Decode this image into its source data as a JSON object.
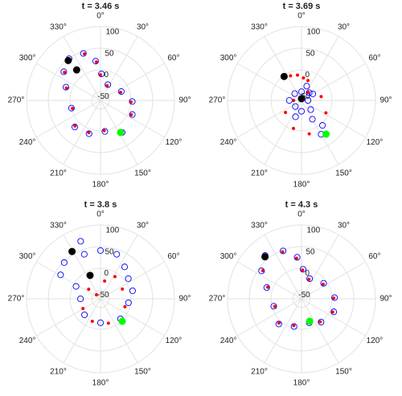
{
  "chart_data": [
    {
      "type": "polar",
      "title": "t = 3.46 s",
      "rlim": [
        -70,
        100
      ],
      "rticks": [
        -50,
        0,
        50,
        100
      ],
      "thetaticks": [
        {
          "value": 0,
          "label": "0°"
        },
        {
          "value": 30,
          "label": "30°"
        },
        {
          "value": 60,
          "label": "60°"
        },
        {
          "value": 90,
          "label": "90°"
        },
        {
          "value": 120,
          "label": "120°"
        },
        {
          "value": 150,
          "label": "150°"
        },
        {
          "value": 180,
          "label": "180°"
        },
        {
          "value": 210,
          "label": "210°"
        },
        {
          "value": 240,
          "label": "240°"
        },
        {
          "value": 270,
          "label": "270°"
        },
        {
          "value": 300,
          "label": "300°"
        },
        {
          "value": 330,
          "label": "330°"
        }
      ],
      "series": [
        {
          "marker": "ring",
          "color": "#0000ff",
          "theta": [
            323,
            340,
            353,
            2,
            25,
            67,
            92,
            114,
            146,
            172,
            199,
            224,
            255,
            291,
            308
          ],
          "r": [
            50,
            45,
            21,
            -9,
            -30,
            -18,
            3,
            10,
            19,
            2,
            11,
            15,
            -1,
            15,
            37
          ]
        },
        {
          "marker": "dot",
          "color": "#ff0000",
          "theta": [
            321,
            341,
            354,
            0,
            24,
            68,
            93,
            115,
            148,
            173,
            200,
            225,
            254,
            290,
            308
          ],
          "r": [
            48,
            43,
            19,
            -11,
            -33,
            -20,
            0,
            8,
            17,
            0,
            9,
            13,
            -3,
            13,
            35
          ]
        },
        {
          "marker": "disc",
          "color": "#000000",
          "theta": [
            321,
            322
          ],
          "r": [
            48,
            19
          ]
        },
        {
          "marker": "disc",
          "color": "#00ff00",
          "theta": [
            148
          ],
          "r": [
            17
          ]
        }
      ]
    },
    {
      "type": "polar",
      "title": "t = 3.69 s",
      "rlim": [
        -70,
        100
      ],
      "rticks": [
        -50,
        0,
        50,
        100
      ],
      "thetaticks": [
        {
          "value": 0,
          "label": "0°"
        },
        {
          "value": 30,
          "label": "30°"
        },
        {
          "value": 60,
          "label": "60°"
        },
        {
          "value": 90,
          "label": "90°"
        },
        {
          "value": 120,
          "label": "120°"
        },
        {
          "value": 150,
          "label": "150°"
        },
        {
          "value": 180,
          "label": "180°"
        },
        {
          "value": 210,
          "label": "210°"
        },
        {
          "value": 240,
          "label": "240°"
        },
        {
          "value": 270,
          "label": "270°"
        },
        {
          "value": 300,
          "label": "300°"
        },
        {
          "value": 330,
          "label": "330°"
        }
      ],
      "series": [
        {
          "marker": "ring",
          "color": "#0000ff",
          "theta": [
            0,
            45,
            90,
            135,
            180,
            225,
            270,
            315,
            20,
            60,
            150,
            200,
            140,
            150
          ],
          "r": [
            -50,
            -45,
            -55,
            -40,
            -45,
            -50,
            -42,
            -48,
            -35,
            -40,
            -20,
            -30,
            5,
            20
          ]
        },
        {
          "marker": "dot",
          "color": "#ff0000",
          "theta": [
            324,
            336,
            351,
            5,
            18,
            39,
            79,
            117,
            144,
            167,
            196,
            233,
            270
          ],
          "r": [
            -2,
            -8,
            -11,
            -18,
            -22,
            -46,
            -24,
            -7,
            26,
            9,
            -3,
            -24,
            -52
          ]
        },
        {
          "marker": "disc",
          "color": "#000000",
          "theta": [
            324,
            0
          ],
          "r": [
            -2,
            -66
          ]
        },
        {
          "marker": "disc",
          "color": "#00ff00",
          "theta": [
            144
          ],
          "r": [
            26
          ]
        }
      ]
    },
    {
      "type": "polar",
      "title": "t = 3.8 s",
      "rlim": [
        -70,
        100
      ],
      "rticks": [
        -50,
        0,
        50,
        100
      ],
      "thetaticks": [
        {
          "value": 0,
          "label": "0°"
        },
        {
          "value": 30,
          "label": "30°"
        },
        {
          "value": 60,
          "label": "60°"
        },
        {
          "value": 90,
          "label": "90°"
        },
        {
          "value": 120,
          "label": "120°"
        },
        {
          "value": 150,
          "label": "150°"
        },
        {
          "value": 180,
          "label": "180°"
        },
        {
          "value": 210,
          "label": "210°"
        },
        {
          "value": 240,
          "label": "240°"
        },
        {
          "value": 270,
          "label": "270°"
        },
        {
          "value": 300,
          "label": "300°"
        },
        {
          "value": 330,
          "label": "330°"
        }
      ],
      "series": [
        {
          "marker": "ring",
          "color": "#0000ff",
          "theta": [
            341,
            315,
            301,
            340,
            0,
            20,
            37,
            54,
            297,
            270,
            225,
            180,
            135,
            98,
            76
          ],
          "r": [
            70,
            48,
            37,
            39,
            41,
            39,
            22,
            9,
            -7,
            -24,
            -18,
            -15,
            -5,
            -5,
            6
          ]
        },
        {
          "marker": "dot",
          "color": "#ff0000",
          "theta": [
            336,
            309,
            315,
            13,
            33,
            66,
            108,
            136,
            162,
            200,
            241
          ],
          "r": [
            -11,
            -35,
            -57,
            -28,
            -9,
            -15,
            -11,
            2,
            -11,
            -15,
            -24
          ]
        },
        {
          "marker": "disc",
          "color": "#000000",
          "theta": [
            329,
            336
          ],
          "r": [
            57,
            -11
          ]
        },
        {
          "marker": "disc",
          "color": "#00ff00",
          "theta": [
            136
          ],
          "r": [
            2
          ]
        }
      ]
    },
    {
      "type": "polar",
      "title": "t = 4.3 s",
      "rlim": [
        -70,
        100
      ],
      "rticks": [
        -50,
        0,
        50,
        100
      ],
      "thetaticks": [
        {
          "value": 0,
          "label": "0°"
        },
        {
          "value": 30,
          "label": "30°"
        },
        {
          "value": 60,
          "label": "60°"
        },
        {
          "value": 90,
          "label": "90°"
        },
        {
          "value": 120,
          "label": "120°"
        },
        {
          "value": 150,
          "label": "150°"
        },
        {
          "value": 180,
          "label": "180°"
        },
        {
          "value": 210,
          "label": "210°"
        },
        {
          "value": 240,
          "label": "240°"
        },
        {
          "value": 270,
          "label": "270°"
        },
        {
          "value": 300,
          "label": "300°"
        },
        {
          "value": 330,
          "label": "330°"
        }
      ],
      "series": [
        {
          "marker": "ring",
          "color": "#0000ff",
          "theta": [
            320,
            339,
            354,
            3,
            22,
            55,
            88,
            112,
            140,
            162,
            195,
            222,
            255,
            288,
            305
          ],
          "r": [
            60,
            48,
            26,
            -2,
            -20,
            -8,
            6,
            10,
            0,
            -12,
            -4,
            8,
            -4,
            14,
            42
          ]
        },
        {
          "marker": "dot",
          "color": "#ff0000",
          "theta": [
            319,
            338,
            353,
            2,
            21,
            56,
            89,
            113,
            141,
            160,
            196,
            223,
            254,
            289,
            306
          ],
          "r": [
            58,
            46,
            24,
            -4,
            -22,
            -10,
            4,
            8,
            -2,
            -15,
            -6,
            6,
            -6,
            12,
            40
          ]
        },
        {
          "marker": "disc",
          "color": "#000000",
          "theta": [
            319
          ],
          "r": [
            58
          ]
        },
        {
          "marker": "disc",
          "color": "#00ff00",
          "theta": [
            160
          ],
          "r": [
            -15
          ]
        }
      ]
    }
  ]
}
